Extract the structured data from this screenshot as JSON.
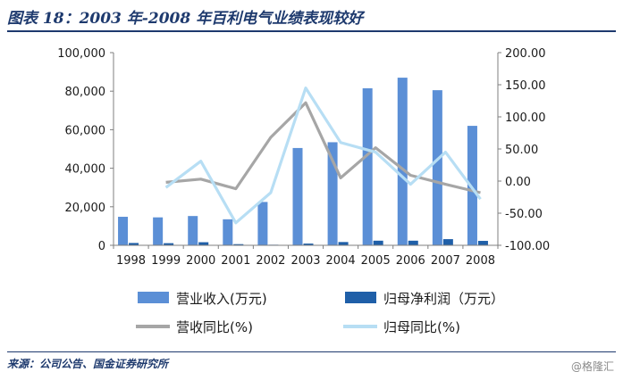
{
  "figure": {
    "title": "图表 18：2003 年-2008 年百利电气业绩表现较好",
    "source": "来源：公司公告、国金证券研究所",
    "watermark": "@格隆汇"
  },
  "chart_data": {
    "type": "bar",
    "title": "",
    "xlabel": "",
    "ylabel": "",
    "categories": [
      "1998",
      "1999",
      "2000",
      "2001",
      "2002",
      "2003",
      "2004",
      "2005",
      "2006",
      "2007",
      "2008"
    ],
    "ylim_left": [
      0,
      100000
    ],
    "ylim_right": [
      -100,
      200
    ],
    "left_ticks": [
      {
        "value": 0,
        "label": "0"
      },
      {
        "value": 20000,
        "label": "20,000"
      },
      {
        "value": 40000,
        "label": "40,000"
      },
      {
        "value": 60000,
        "label": "60,000"
      },
      {
        "value": 80000,
        "label": "80,000"
      },
      {
        "value": 100000,
        "label": "100,000"
      }
    ],
    "right_ticks": [
      {
        "value": -100,
        "label": "-100.00"
      },
      {
        "value": -50,
        "label": "-50.00"
      },
      {
        "value": 0,
        "label": "0.00"
      },
      {
        "value": 50,
        "label": "50.00"
      },
      {
        "value": 100,
        "label": "100.00"
      },
      {
        "value": 150,
        "label": "150.00"
      },
      {
        "value": 200,
        "label": "200.00"
      }
    ],
    "legend_position": "bottom",
    "grid": false,
    "series": [
      {
        "name": "营业收入(万元)",
        "type": "bar",
        "axis": "left",
        "color": "#5b8fd6",
        "values": [
          14800,
          14500,
          15200,
          13500,
          22500,
          50500,
          53500,
          81500,
          87000,
          80500,
          62000
        ]
      },
      {
        "name": "归母净利润（万元）",
        "type": "bar",
        "axis": "left",
        "color": "#1f5fa8",
        "values": [
          1200,
          1100,
          1600,
          600,
          300,
          900,
          1700,
          2400,
          2400,
          3200,
          2300
        ]
      },
      {
        "name": "营收同比(%)",
        "type": "line",
        "axis": "right",
        "color": "#a6a6a6",
        "values": [
          null,
          -2,
          3,
          -12,
          68,
          122,
          5,
          52,
          9,
          -5,
          -18
        ]
      },
      {
        "name": "归母同比(%)",
        "type": "line",
        "axis": "right",
        "color": "#b7def4",
        "values": [
          null,
          -10,
          31,
          -65,
          -18,
          145,
          60,
          45,
          -5,
          45,
          -28
        ]
      }
    ]
  }
}
